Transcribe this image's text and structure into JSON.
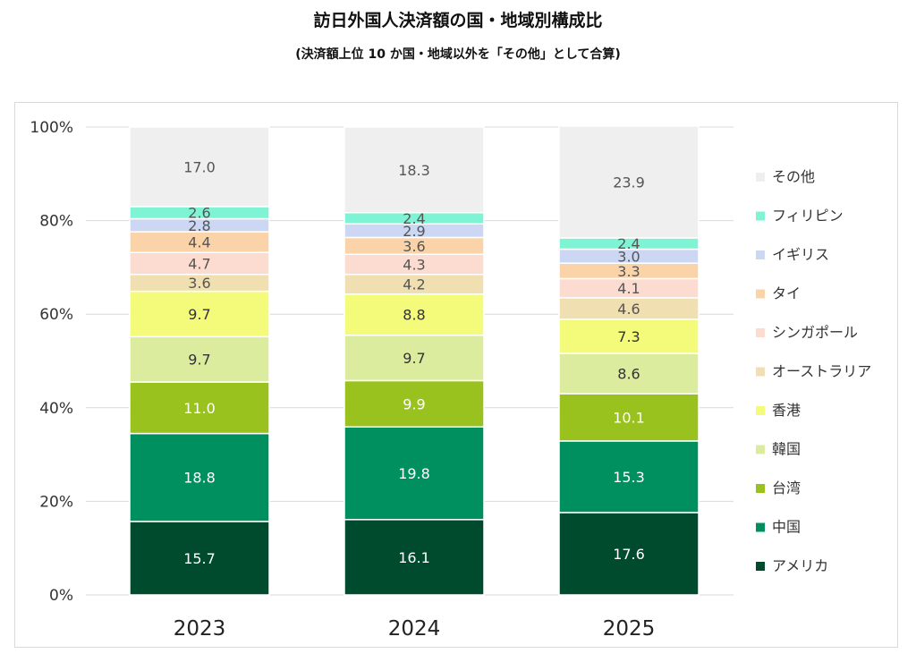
{
  "chart_data": {
    "type": "bar",
    "stacked": true,
    "percent": true,
    "title": "訪日外国人決済額の国・地域別構成比",
    "subtitle": "(決済額上位 10 か国・地域以外を「その他」として合算)",
    "categories": [
      "2023",
      "2024",
      "2025"
    ],
    "ylim": [
      0,
      100
    ],
    "yticks": [
      "0%",
      "20%",
      "40%",
      "60%",
      "80%",
      "100%"
    ],
    "grid": true,
    "legend_position": "right",
    "series": [
      {
        "name": "アメリカ",
        "color": "#004b2e",
        "label_color": "#ffffff",
        "values": [
          15.7,
          16.1,
          17.6
        ]
      },
      {
        "name": "中国",
        "color": "#00905f",
        "label_color": "#ffffff",
        "values": [
          18.8,
          19.8,
          15.3
        ]
      },
      {
        "name": "台湾",
        "color": "#99c21f",
        "label_color": "#ffffff",
        "values": [
          11.0,
          9.9,
          10.1
        ]
      },
      {
        "name": "韓国",
        "color": "#dcec9f",
        "label_color": "#333333",
        "values": [
          9.7,
          9.7,
          8.6
        ]
      },
      {
        "name": "香港",
        "color": "#f4fa7a",
        "label_color": "#333333",
        "values": [
          9.7,
          8.8,
          7.3
        ]
      },
      {
        "name": "オーストラリア",
        "color": "#f0dfb0",
        "label_color": "#555555",
        "values": [
          3.6,
          4.2,
          4.6
        ]
      },
      {
        "name": "シンガポール",
        "color": "#fcdcd0",
        "label_color": "#555555",
        "values": [
          4.7,
          4.3,
          4.1
        ]
      },
      {
        "name": "タイ",
        "color": "#fbd3a8",
        "label_color": "#555555",
        "values": [
          4.4,
          3.6,
          3.3
        ]
      },
      {
        "name": "イギリス",
        "color": "#ccd7f4",
        "label_color": "#555555",
        "values": [
          2.8,
          2.9,
          3.0
        ]
      },
      {
        "name": "フィリピン",
        "color": "#7ff4d4",
        "label_color": "#555555",
        "values": [
          2.6,
          2.4,
          2.4
        ]
      },
      {
        "name": "その他",
        "color": "#efefef",
        "label_color": "#555555",
        "values": [
          17.0,
          18.3,
          23.9
        ]
      }
    ]
  }
}
